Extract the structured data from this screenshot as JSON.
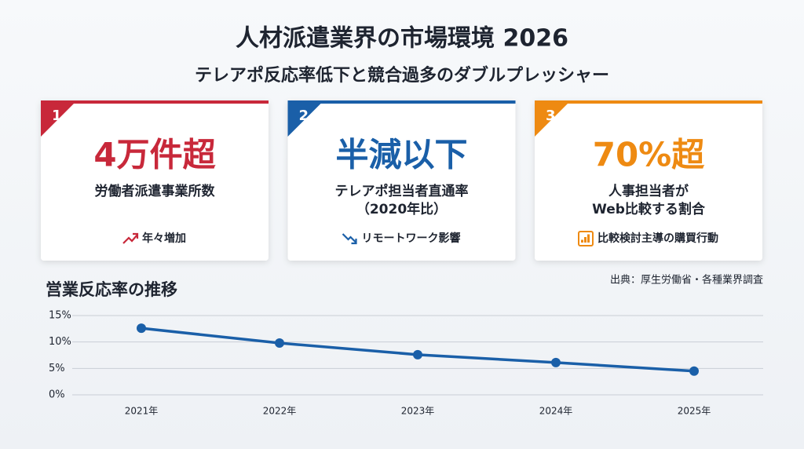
{
  "header": {
    "title": "人材派遣業界の市場環境 2026",
    "subtitle": "テレアポ反応率低下と競合過多のダブルプレッシャー"
  },
  "cards": [
    {
      "number": "1",
      "headline": "4万件超",
      "label": [
        "労働者派遣事業所数"
      ],
      "note": "年々増加",
      "color": "#c8283a"
    },
    {
      "number": "2",
      "headline": "半減以下",
      "label": [
        "テレアポ担当者直通率",
        "（2020年比）"
      ],
      "note": "リモートワーク影響",
      "color": "#1a5fa8"
    },
    {
      "number": "3",
      "headline": "70%超",
      "label": [
        "人事担当者が",
        "Web比較する割合"
      ],
      "note": "比較検討主導の購買行動",
      "color": "#ee8a12"
    }
  ],
  "source": "出典：厚生労働省・各種業界調査",
  "chart_data": {
    "type": "line",
    "title": "営業反応率の推移",
    "categories": [
      "2021年",
      "2022年",
      "2023年",
      "2024年",
      "2025年"
    ],
    "values": [
      12.6,
      9.8,
      7.6,
      6.1,
      4.5
    ],
    "color": "#1a5fa8",
    "ylim": [
      0,
      15
    ],
    "yticks": [
      {
        "value": 0,
        "label": "0%"
      },
      {
        "value": 5,
        "label": "5%"
      },
      {
        "value": 10,
        "label": "10%"
      },
      {
        "value": 15,
        "label": "15%"
      }
    ],
    "grid": true
  }
}
